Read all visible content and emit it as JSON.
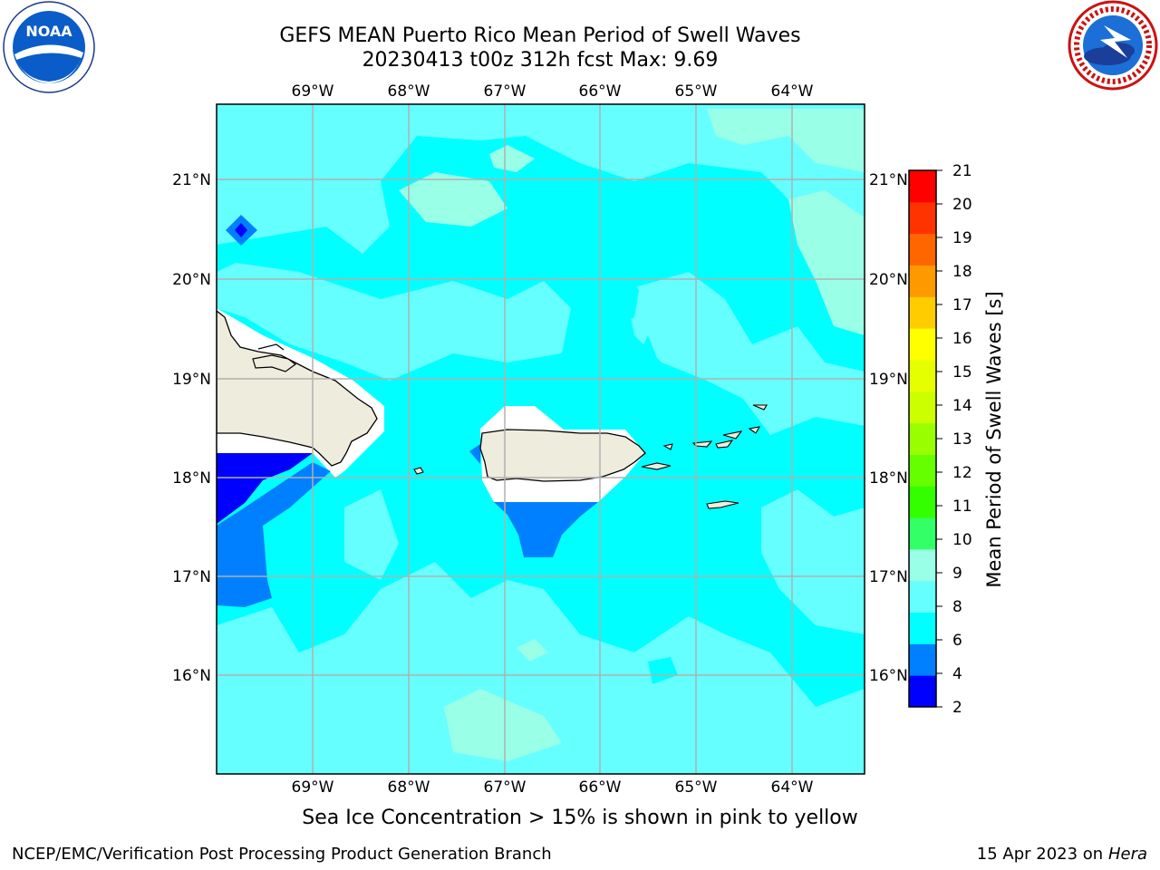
{
  "title": {
    "line1": "GEFS MEAN Puerto Rico Mean Period of Swell Waves",
    "line2": "20230413 t00z 312h fcst   Max: 9.69"
  },
  "map": {
    "lon_labels": [
      "69°W",
      "68°W",
      "67°W",
      "66°W",
      "65°W",
      "64°W"
    ],
    "lat_labels": [
      "21°N",
      "20°N",
      "19°N",
      "18°N",
      "17°N",
      "16°N"
    ],
    "colors": {
      "land": "#eeecdc",
      "ocean_main": "#00ffff",
      "ocean_light": "#66ffff",
      "ocean_lighter": "#99ffe6",
      "blue_4_6": "#0080ff",
      "blue_2_4": "#0000ff",
      "grid": "#b0b0b0"
    }
  },
  "colorbar": {
    "label": "Mean Period of Swell Waves [s]",
    "ticks": [
      "2",
      "4",
      "6",
      "8",
      "9",
      "10",
      "11",
      "12",
      "13",
      "14",
      "15",
      "16",
      "17",
      "18",
      "19",
      "20",
      "21"
    ],
    "colors": [
      "#0000ff",
      "#0080ff",
      "#00ffff",
      "#66ffff",
      "#99ffe6",
      "#33ff66",
      "#33ff00",
      "#66ff00",
      "#99ff00",
      "#ccff00",
      "#e6ff00",
      "#ffff00",
      "#ffcc00",
      "#ff9900",
      "#ff6600",
      "#ff3300",
      "#ff0000"
    ]
  },
  "ice_note": "Sea Ice Concentration > 15% is shown in pink to yellow",
  "footer": {
    "left": "NCEP/EMC/Verification Post Processing Product Generation Branch",
    "right_date": "15 Apr 2023 on",
    "right_host": "Hera"
  },
  "logos": {
    "noaa": "NOAA",
    "nws": "NATIONAL WEATHER SERVICE"
  }
}
